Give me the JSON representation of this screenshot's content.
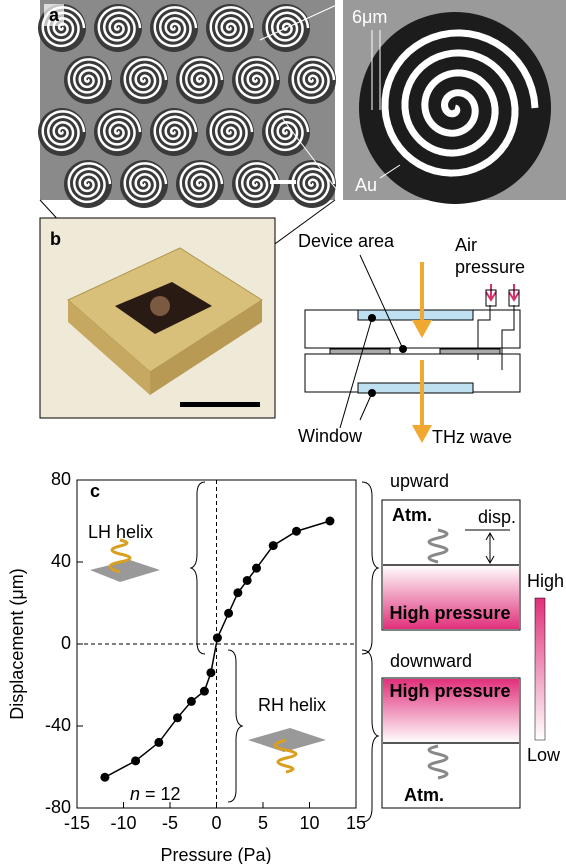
{
  "chart_data": {
    "type": "line",
    "panel_label": "c",
    "x_label": "Pressure (Pa)",
    "y_label": "Displacement (μm)",
    "x": [
      -12,
      -8.7,
      -6.2,
      -4.2,
      -2.7,
      -1.3,
      -0.6,
      0.1,
      1.3,
      2.3,
      3.3,
      4.3,
      6.1,
      8.6,
      12.2
    ],
    "series": [
      {
        "color": "#000000",
        "values": [
          -65,
          -57,
          -48,
          -36,
          -28,
          -23,
          -14,
          3,
          15,
          25,
          31,
          37,
          48,
          55,
          60
        ]
      }
    ],
    "xlim": [
      -15,
      15
    ],
    "ylim": [
      -80,
      80
    ],
    "xticks": [
      -15,
      -10,
      -5,
      0,
      5,
      10,
      15
    ],
    "yticks": [
      -80,
      -40,
      0,
      40,
      80
    ],
    "annotations": {
      "lh": "LH helix",
      "rh": "RH helix",
      "n_symbol": "n",
      "n_value": "= 12"
    }
  },
  "panel_a": {
    "label": "a",
    "scale": "6μm",
    "material": "Au"
  },
  "panel_b": {
    "label": "b",
    "device_area": "Device area",
    "air": "Air",
    "pressure": "pressure",
    "window": "Window",
    "thz": "THz wave"
  },
  "panel_c_side": {
    "upward": "upward",
    "atm_top": "Atm.",
    "disp": "disp.",
    "high_top": "High pressure",
    "downward": "downward",
    "high_bottom": "High pressure",
    "atm_bottom": "Atm.",
    "high": "High",
    "low": "Low"
  }
}
